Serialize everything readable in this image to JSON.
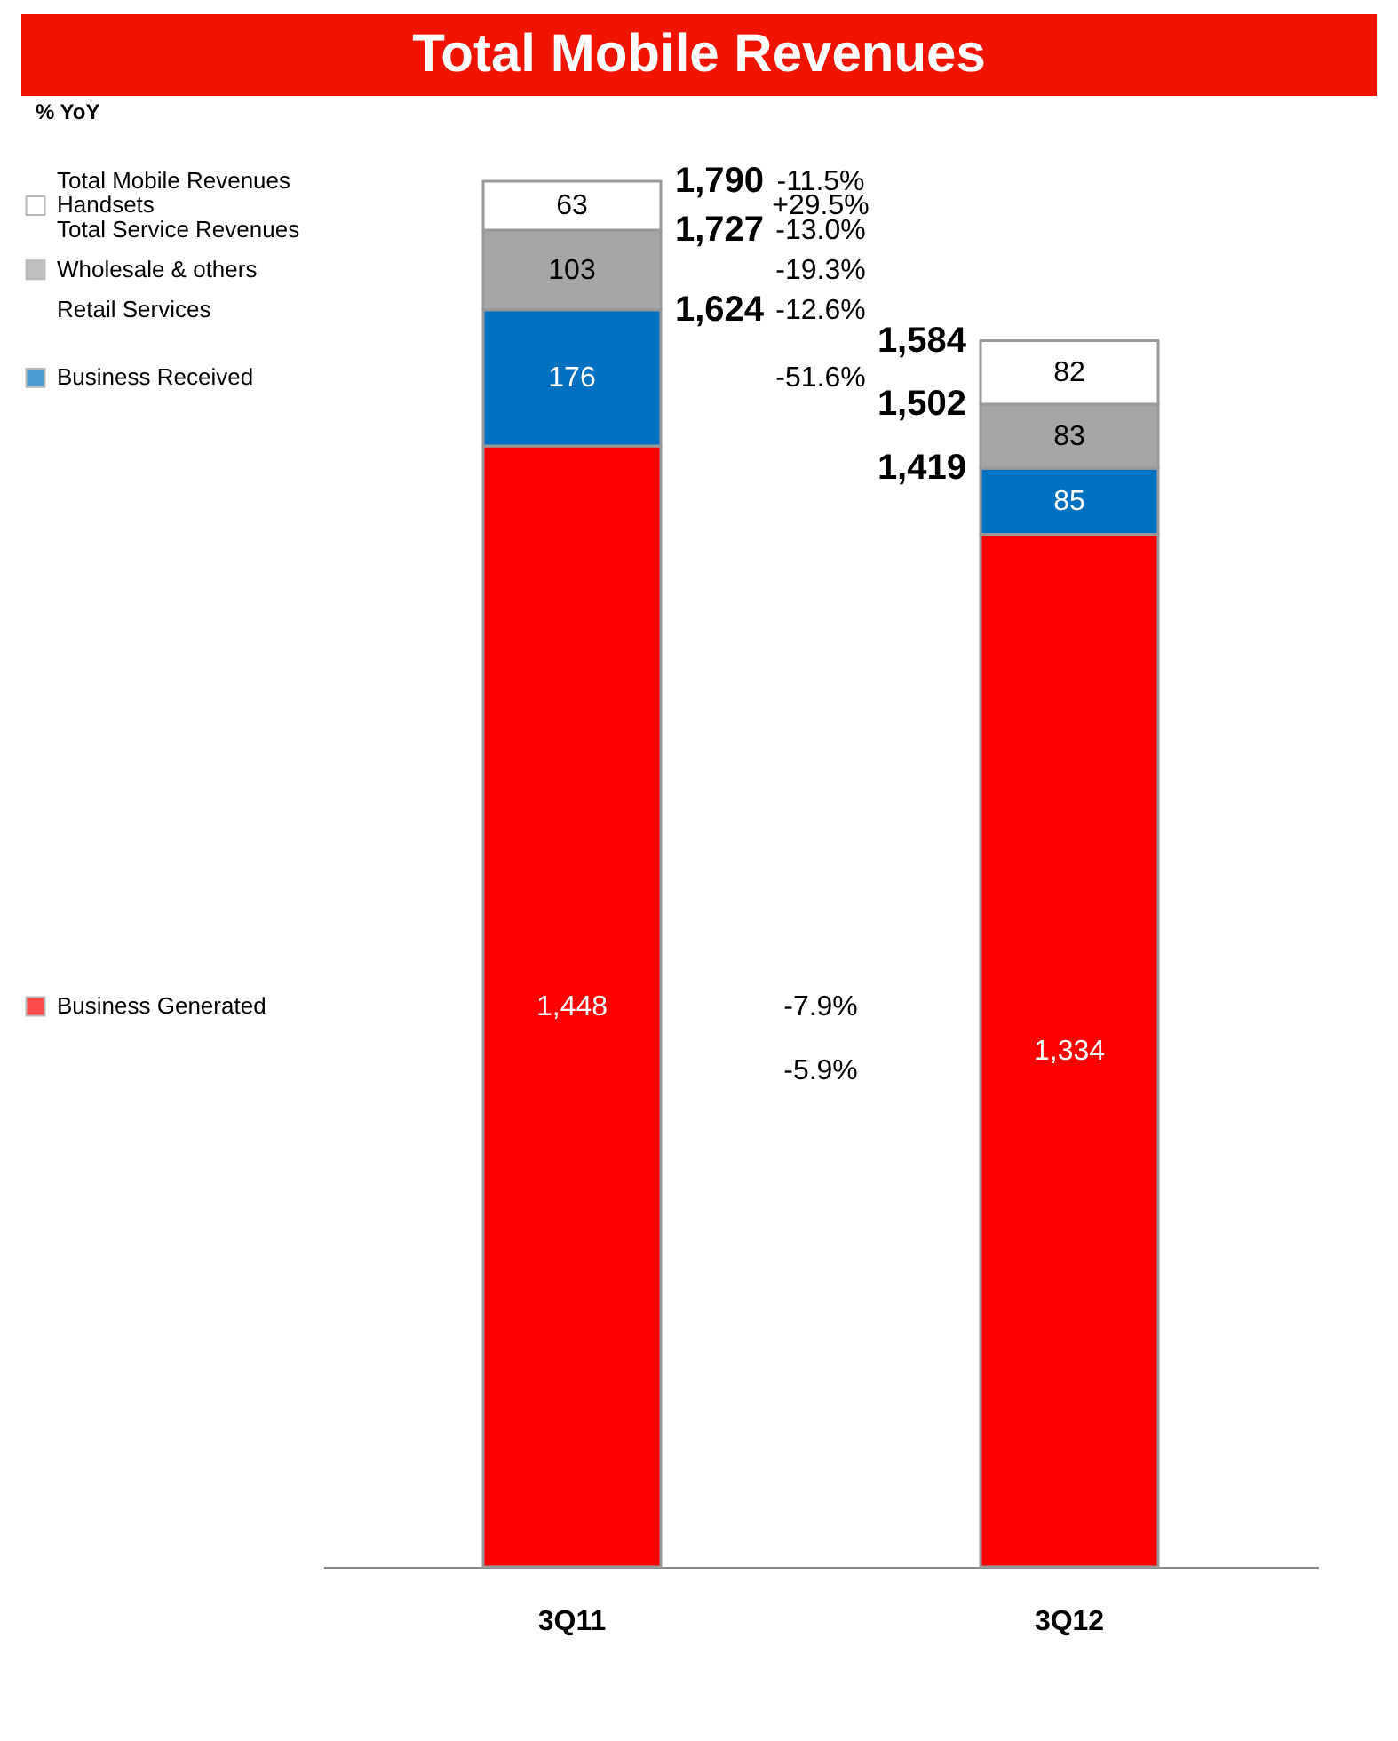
{
  "chart_data": {
    "type": "bar",
    "title": "Total Mobile Revenues",
    "subtitle": "% YoY",
    "categories": [
      "3Q11",
      "3Q12"
    ],
    "stacked": true,
    "tick_labels": "x",
    "legend": "left",
    "series": [
      {
        "name": "Business Generated",
        "color": "#ff0000",
        "values": [
          1448,
          1334
        ],
        "value_labels": [
          "1,448",
          "1,334"
        ]
      },
      {
        "name": "Business Received",
        "color": "#0070c0",
        "values": [
          176,
          85
        ],
        "value_labels": [
          "176",
          "85"
        ]
      },
      {
        "name": "Wholesale & others",
        "color": "#a6a6a6",
        "values": [
          103,
          83
        ],
        "value_labels": [
          "103",
          "83"
        ]
      },
      {
        "name": "Handsets",
        "color": "#ffffff",
        "values": [
          63,
          82
        ],
        "value_labels": [
          "63",
          "82"
        ]
      }
    ],
    "annotations": [
      "Total Mobile Revenues",
      "Total Service Revenues",
      "Retail Services",
      {
        "text": "1,790",
        "x": "3Q11",
        "y": 1790
      },
      {
        "text": "1,727",
        "x": "3Q11",
        "y": 1727
      },
      {
        "text": "1,624",
        "x": "3Q11",
        "y": 1624
      },
      {
        "text": "1,584",
        "x": "3Q12",
        "y": 1584
      },
      {
        "text": "1,502",
        "x": "3Q12",
        "y": 1502
      },
      {
        "text": "1,419",
        "x": "3Q12",
        "y": 1419
      },
      "-11.5%",
      "+29.5%",
      "-13.0%",
      "-19.3%",
      "-12.6%",
      "-51.6%",
      "-7.9%",
      "-5.9%"
    ]
  }
}
